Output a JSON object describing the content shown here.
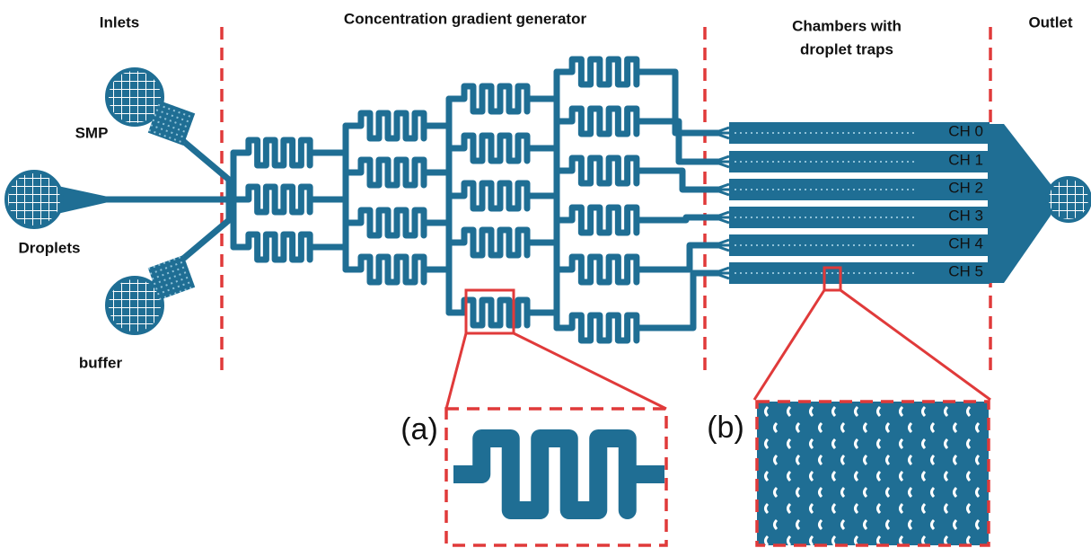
{
  "sections": {
    "inlets": "Inlets",
    "gradient": "Concentration gradient generator",
    "chambers": [
      "Chambers with",
      "droplet traps"
    ],
    "outlet": "Outlet"
  },
  "inlets": [
    "SMP",
    "Droplets",
    "buffer"
  ],
  "chambers": [
    "CH 0",
    "CH 1",
    "CH 2",
    "CH 3",
    "CH 4",
    "CH 5"
  ],
  "panels": [
    "(a)",
    "(b)"
  ]
}
